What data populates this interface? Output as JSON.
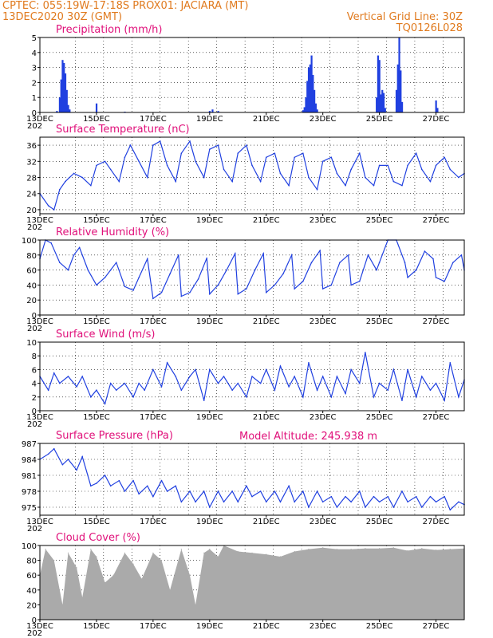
{
  "header": {
    "line1_left": "CPTEC:   055:19W-17:18S   PROX01: JACIARA (MT)",
    "line2_left": "13DEC2020 30Z (GMT)",
    "line2_right": "Vertical Grid Line: 30Z",
    "line3_right": "TQ0126L028",
    "model_altitude": "Model Altitude: 245.938  m"
  },
  "colors": {
    "header": "#e07a1e",
    "titles": "#e0107a",
    "series": "#2040e0",
    "cloud": "#aaaaaa"
  },
  "x_axis": {
    "day_labels": [
      "13DEC",
      "15DEC",
      "17DEC",
      "19DEC",
      "21DEC",
      "23DEC",
      "25DEC",
      "27DEC"
    ],
    "year_label": "202"
  },
  "chart_data": [
    {
      "type": "bar",
      "title": "Precipitation (mm/h)",
      "ylim": [
        0,
        5
      ],
      "yticks": [
        0,
        1,
        2,
        3,
        4,
        5
      ],
      "x_unit": "days since 13DEC 00Z",
      "grid": "dotted",
      "values": [
        [
          0.6,
          0.1
        ],
        [
          0.7,
          1.0
        ],
        [
          0.75,
          2.2
        ],
        [
          0.8,
          3.5
        ],
        [
          0.85,
          3.3
        ],
        [
          0.9,
          2.6
        ],
        [
          0.95,
          1.5
        ],
        [
          1.0,
          0.5
        ],
        [
          1.05,
          0.2
        ],
        [
          2.0,
          0.6
        ],
        [
          3.0,
          0.05
        ],
        [
          6.0,
          0.1
        ],
        [
          6.1,
          0.2
        ],
        [
          6.3,
          0.1
        ],
        [
          9.3,
          0.15
        ],
        [
          9.35,
          0.35
        ],
        [
          9.4,
          1.0
        ],
        [
          9.45,
          2.1
        ],
        [
          9.5,
          3.0
        ],
        [
          9.55,
          3.2
        ],
        [
          9.6,
          3.8
        ],
        [
          9.65,
          2.5
        ],
        [
          9.7,
          1.5
        ],
        [
          9.75,
          0.6
        ],
        [
          9.8,
          0.2
        ],
        [
          11.9,
          1.0
        ],
        [
          11.95,
          3.8
        ],
        [
          12.0,
          3.5
        ],
        [
          12.05,
          1.2
        ],
        [
          12.1,
          1.5
        ],
        [
          12.15,
          1.3
        ],
        [
          12.2,
          0.3
        ],
        [
          12.6,
          1.5
        ],
        [
          12.65,
          3.2
        ],
        [
          12.7,
          5.0
        ],
        [
          12.75,
          2.8
        ],
        [
          12.8,
          0.7
        ],
        [
          14.0,
          0.8
        ],
        [
          14.05,
          0.3
        ]
      ]
    },
    {
      "type": "line",
      "title": "Surface Temperature (nC)",
      "ylim": [
        19,
        38
      ],
      "yticks": [
        20,
        24,
        28,
        32,
        36
      ],
      "x": [
        0,
        0.3,
        0.5,
        0.7,
        0.9,
        1.2,
        1.5,
        1.8,
        2.0,
        2.3,
        2.5,
        2.8,
        3.0,
        3.2,
        3.5,
        3.8,
        4.0,
        4.25,
        4.5,
        4.8,
        5.0,
        5.3,
        5.5,
        5.8,
        6.0,
        6.3,
        6.5,
        6.8,
        7.0,
        7.3,
        7.5,
        7.8,
        8.0,
        8.3,
        8.5,
        8.8,
        9.0,
        9.3,
        9.5,
        9.8,
        10.0,
        10.3,
        10.5,
        10.8,
        11.0,
        11.3,
        11.5,
        11.8,
        12.0,
        12.3,
        12.5,
        12.8,
        13.0,
        13.3,
        13.5,
        13.8,
        14.0,
        14.3,
        14.5,
        14.8,
        15.0
      ],
      "values": [
        24,
        21,
        20,
        25,
        27,
        29,
        28,
        26,
        31,
        32,
        30,
        27,
        33,
        36,
        32,
        28,
        36,
        37,
        31,
        27,
        34,
        37,
        32,
        28,
        35,
        36,
        30,
        27,
        34,
        36,
        31,
        27,
        33,
        34,
        29,
        26,
        33,
        34,
        28,
        25,
        32,
        33,
        29,
        26,
        30,
        34,
        28,
        26,
        31,
        31,
        27,
        26,
        31,
        34,
        30,
        27,
        31,
        33,
        30,
        28,
        29
      ]
    },
    {
      "type": "line",
      "title": "Relative Humidity (%)",
      "ylim": [
        0,
        100
      ],
      "yticks": [
        0,
        20,
        40,
        60,
        80,
        100
      ],
      "x": [
        0,
        0.2,
        0.4,
        0.7,
        1.0,
        1.2,
        1.4,
        1.7,
        2.0,
        2.3,
        2.5,
        2.7,
        3.0,
        3.3,
        3.5,
        3.8,
        4.0,
        4.3,
        4.6,
        4.9,
        5.0,
        5.3,
        5.6,
        5.9,
        6.0,
        6.3,
        6.6,
        6.9,
        7.0,
        7.3,
        7.6,
        7.9,
        8.0,
        8.3,
        8.6,
        8.9,
        9.0,
        9.3,
        9.6,
        9.9,
        10.0,
        10.3,
        10.6,
        10.9,
        11.0,
        11.3,
        11.6,
        11.9,
        12.0,
        12.3,
        12.6,
        12.9,
        13.0,
        13.3,
        13.6,
        13.9,
        14.0,
        14.3,
        14.6,
        14.9,
        15.0
      ],
      "values": [
        75,
        100,
        96,
        70,
        60,
        80,
        90,
        60,
        40,
        50,
        60,
        70,
        38,
        33,
        50,
        75,
        22,
        30,
        55,
        80,
        25,
        30,
        48,
        76,
        28,
        40,
        60,
        82,
        28,
        35,
        60,
        82,
        30,
        40,
        55,
        80,
        35,
        45,
        70,
        86,
        35,
        40,
        70,
        80,
        40,
        45,
        80,
        60,
        70,
        100,
        100,
        70,
        50,
        60,
        85,
        75,
        50,
        45,
        70,
        80,
        60
      ]
    },
    {
      "type": "line",
      "title": "Surface Wind (m/s)",
      "ylim": [
        0,
        10
      ],
      "yticks": [
        0,
        2,
        4,
        6,
        8,
        10
      ],
      "x": [
        0,
        0.3,
        0.5,
        0.7,
        1.0,
        1.3,
        1.5,
        1.8,
        2.0,
        2.3,
        2.5,
        2.7,
        3.0,
        3.3,
        3.5,
        3.7,
        4.0,
        4.3,
        4.5,
        4.8,
        5.0,
        5.3,
        5.5,
        5.8,
        6.0,
        6.3,
        6.5,
        6.8,
        7.0,
        7.3,
        7.5,
        7.8,
        8.0,
        8.3,
        8.5,
        8.8,
        9.0,
        9.3,
        9.5,
        9.8,
        10.0,
        10.3,
        10.5,
        10.8,
        11.0,
        11.3,
        11.5,
        11.8,
        12.0,
        12.3,
        12.5,
        12.8,
        13.0,
        13.3,
        13.5,
        13.8,
        14.0,
        14.3,
        14.5,
        14.8,
        15.0
      ],
      "values": [
        5,
        3,
        5.5,
        4,
        5,
        3.5,
        5,
        2,
        3,
        1,
        4,
        3,
        4,
        2,
        4,
        3,
        6,
        3.5,
        7,
        5,
        3,
        5,
        6,
        1.5,
        6,
        4,
        5,
        3,
        4,
        2,
        5,
        4,
        6,
        3,
        6.5,
        3.5,
        5,
        2,
        7,
        3,
        5,
        2,
        5,
        2.5,
        6,
        4,
        8.5,
        2,
        4,
        3,
        6,
        1.5,
        6,
        2,
        5,
        3,
        4,
        1.5,
        7,
        2,
        4.5
      ]
    },
    {
      "type": "line",
      "title": "Surface Pressure (hPa)",
      "ylim": [
        973.5,
        987
      ],
      "yticks": [
        975,
        978,
        981,
        984,
        987
      ],
      "x": [
        0,
        0.3,
        0.5,
        0.8,
        1.0,
        1.3,
        1.5,
        1.8,
        2.0,
        2.3,
        2.5,
        2.8,
        3.0,
        3.3,
        3.5,
        3.8,
        4.0,
        4.3,
        4.5,
        4.8,
        5.0,
        5.3,
        5.5,
        5.8,
        6.0,
        6.3,
        6.5,
        6.8,
        7.0,
        7.3,
        7.5,
        7.8,
        8.0,
        8.3,
        8.5,
        8.8,
        9.0,
        9.3,
        9.5,
        9.8,
        10.0,
        10.3,
        10.5,
        10.8,
        11.0,
        11.3,
        11.5,
        11.8,
        12.0,
        12.3,
        12.5,
        12.8,
        13.0,
        13.3,
        13.5,
        13.8,
        14.0,
        14.3,
        14.5,
        14.8,
        15.0
      ],
      "values": [
        984,
        985,
        986,
        983,
        984,
        982,
        984.5,
        979,
        979.5,
        981,
        979,
        980,
        978,
        980,
        977.5,
        979,
        977,
        980,
        978,
        979,
        976,
        978,
        976,
        978,
        975,
        978,
        976,
        978,
        976,
        979,
        977,
        978,
        976,
        978,
        976,
        979,
        976,
        978,
        975,
        978,
        976,
        977,
        975,
        977,
        976,
        978,
        975,
        977,
        976,
        977,
        975,
        978,
        976,
        977,
        975,
        977,
        976,
        977,
        974.5,
        976,
        975.5
      ]
    },
    {
      "type": "area",
      "title": "Cloud Cover (%)",
      "ylim": [
        0,
        100
      ],
      "yticks": [
        0,
        20,
        40,
        60,
        80,
        100
      ],
      "x": [
        0,
        0.2,
        0.5,
        0.8,
        1.0,
        1.3,
        1.5,
        1.8,
        2.0,
        2.3,
        2.6,
        3.0,
        3.3,
        3.6,
        4.0,
        4.3,
        4.6,
        5.0,
        5.3,
        5.5,
        5.8,
        6.0,
        6.3,
        6.5,
        7.0,
        7.5,
        8.0,
        8.5,
        9.0,
        9.5,
        10.0,
        10.5,
        11.0,
        11.5,
        12.0,
        12.5,
        13.0,
        13.5,
        14.0,
        14.5,
        15.0
      ],
      "values": [
        60,
        95,
        80,
        20,
        90,
        70,
        30,
        95,
        85,
        50,
        60,
        90,
        75,
        55,
        90,
        80,
        40,
        95,
        60,
        20,
        90,
        95,
        85,
        100,
        92,
        90,
        88,
        85,
        92,
        95,
        97,
        95,
        95,
        96,
        96,
        97,
        93,
        96,
        94,
        95,
        96
      ]
    }
  ]
}
